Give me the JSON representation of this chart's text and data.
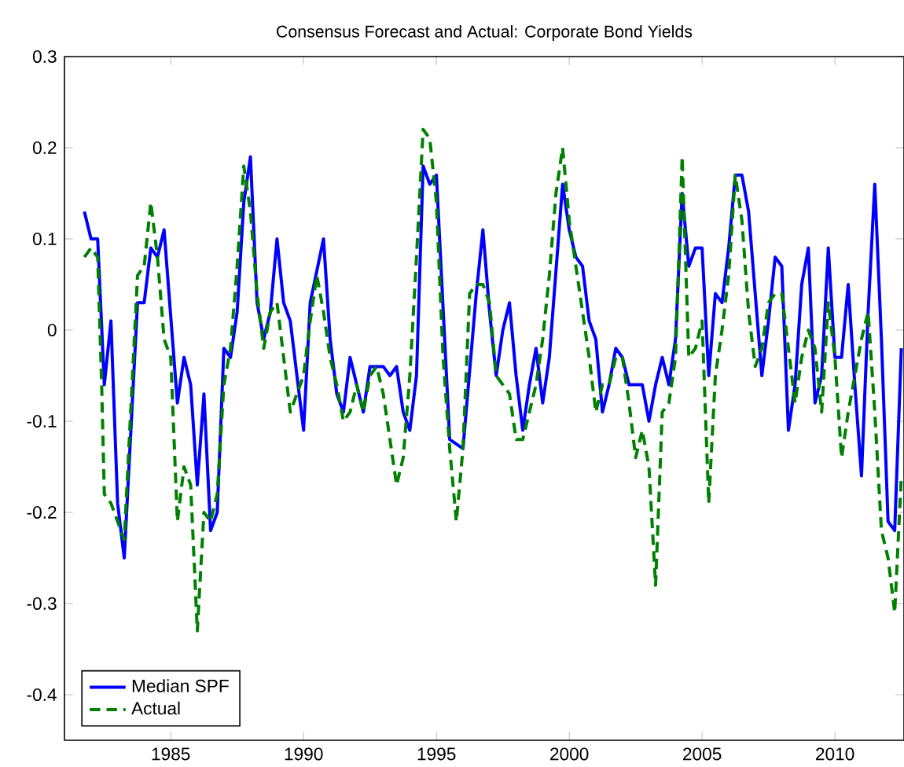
{
  "chart_data": {
    "type": "line",
    "title": "Consensus Forecast and Actual: Corporate Bond Yields",
    "xlim": [
      1981,
      2012.6
    ],
    "xticks": [
      1985,
      1990,
      1995,
      2000,
      2005,
      2010
    ],
    "ylim": [
      -0.45,
      0.3
    ],
    "yticks": [
      -0.4,
      -0.3,
      -0.2,
      -0.1,
      0,
      0.1,
      0.2,
      0.3
    ],
    "grid": false,
    "legend": "bottom left",
    "series": [
      {
        "name": "Median SPF",
        "color": "#0000ff",
        "line_style": "solid",
        "x": [
          1981.75,
          1982.0,
          1982.25,
          1982.5,
          1982.75,
          1983.0,
          1983.25,
          1983.75,
          1984.0,
          1984.25,
          1984.5,
          1984.75,
          1985.25,
          1985.5,
          1985.75,
          1986.0,
          1986.25,
          1986.5,
          1986.75,
          1987.0,
          1987.25,
          1987.5,
          1987.75,
          1988.0,
          1988.25,
          1988.5,
          1988.75,
          1989.0,
          1989.25,
          1989.5,
          1990.0,
          1990.25,
          1990.75,
          1991.0,
          1991.25,
          1991.5,
          1991.75,
          1992.0,
          1992.25,
          1992.5,
          1992.75,
          1993.0,
          1993.25,
          1993.5,
          1993.75,
          1994.0,
          1994.25,
          1994.5,
          1994.75,
          1995.0,
          1995.5,
          1996.0,
          1996.5,
          1996.75,
          1997.0,
          1997.25,
          1997.5,
          1997.75,
          1998.0,
          1998.25,
          1998.5,
          1998.75,
          1999.0,
          1999.25,
          1999.75,
          2000.0,
          2000.25,
          2000.5,
          2000.75,
          2001.0,
          2001.25,
          2001.5,
          2001.75,
          2002.0,
          2002.25,
          2002.5,
          2002.75,
          2003.0,
          2003.25,
          2003.5,
          2003.75,
          2004.0,
          2004.25,
          2004.5,
          2004.75,
          2005.0,
          2005.25,
          2005.5,
          2005.75,
          2006.0,
          2006.25,
          2006.5,
          2006.75,
          2007.0,
          2007.25,
          2007.5,
          2007.75,
          2008.0,
          2008.25,
          2008.5,
          2008.75,
          2009.0,
          2009.25,
          2009.5,
          2009.75,
          2010.0,
          2010.25,
          2010.5,
          2010.75,
          2011.0,
          2011.25,
          2011.5,
          2011.75,
          2012.0,
          2012.25,
          2012.5
        ],
        "values": [
          0.13,
          0.1,
          0.1,
          -0.06,
          0.01,
          -0.19,
          -0.25,
          0.03,
          0.03,
          0.09,
          0.08,
          0.11,
          -0.08,
          -0.03,
          -0.06,
          -0.17,
          -0.07,
          -0.22,
          -0.2,
          -0.02,
          -0.03,
          0.02,
          0.14,
          0.19,
          0.03,
          -0.01,
          0.02,
          0.1,
          0.03,
          0.01,
          -0.11,
          0.03,
          0.1,
          -0.01,
          -0.07,
          -0.09,
          -0.03,
          -0.06,
          -0.09,
          -0.04,
          -0.04,
          -0.04,
          -0.05,
          -0.04,
          -0.09,
          -0.11,
          -0.05,
          0.18,
          0.16,
          0.17,
          -0.12,
          -0.13,
          0.04,
          0.11,
          0.02,
          -0.05,
          0.0,
          0.03,
          -0.05,
          -0.11,
          -0.06,
          -0.02,
          -0.08,
          -0.03,
          0.16,
          0.11,
          0.08,
          0.07,
          0.01,
          -0.01,
          -0.09,
          -0.06,
          -0.02,
          -0.03,
          -0.06,
          -0.06,
          -0.06,
          -0.1,
          -0.06,
          -0.03,
          -0.06,
          -0.01,
          0.15,
          0.07,
          0.09,
          0.09,
          -0.05,
          0.04,
          0.03,
          0.09,
          0.17,
          0.17,
          0.13,
          0.04,
          -0.05,
          0.01,
          0.08,
          0.07,
          -0.11,
          -0.06,
          0.05,
          0.09,
          -0.08,
          -0.05,
          0.09,
          -0.03,
          -0.03,
          0.05,
          -0.06,
          -0.16,
          0.02,
          0.16,
          -0.01,
          -0.21,
          -0.22,
          -0.02
        ]
      },
      {
        "name": "Actual",
        "color": "#008000",
        "line_style": "dashed",
        "x": [
          1981.75,
          1982.0,
          1982.25,
          1982.4,
          1982.5,
          1982.75,
          1983.25,
          1983.75,
          1984.0,
          1984.25,
          1984.5,
          1984.75,
          1985.0,
          1985.25,
          1985.5,
          1985.75,
          1986.0,
          1986.25,
          1986.5,
          1986.75,
          1987.0,
          1987.25,
          1987.5,
          1987.75,
          1988.0,
          1988.25,
          1988.5,
          1988.75,
          1989.0,
          1989.25,
          1989.5,
          1990.0,
          1990.25,
          1990.5,
          1990.75,
          1991.0,
          1991.25,
          1991.5,
          1991.75,
          1992.0,
          1992.25,
          1992.5,
          1992.75,
          1993.0,
          1993.25,
          1993.5,
          1993.75,
          1994.0,
          1994.25,
          1994.5,
          1994.75,
          1995.0,
          1995.25,
          1995.5,
          1995.75,
          1996.0,
          1996.25,
          1996.5,
          1996.75,
          1997.0,
          1997.25,
          1997.5,
          1997.75,
          1998.0,
          1998.25,
          1998.5,
          1998.75,
          1999.0,
          1999.25,
          1999.5,
          1999.75,
          2000.0,
          2000.25,
          2000.5,
          2000.75,
          2001.0,
          2001.25,
          2001.5,
          2001.75,
          2002.0,
          2002.25,
          2002.5,
          2002.75,
          2003.0,
          2003.25,
          2003.5,
          2003.75,
          2004.0,
          2004.25,
          2004.5,
          2004.75,
          2005.0,
          2005.25,
          2005.5,
          2005.75,
          2006.0,
          2006.25,
          2006.5,
          2006.75,
          2007.0,
          2007.25,
          2007.5,
          2007.75,
          2008.0,
          2008.25,
          2008.5,
          2008.75,
          2009.0,
          2009.25,
          2009.5,
          2009.75,
          2010.0,
          2010.25,
          2010.5,
          2010.75,
          2011.0,
          2011.25,
          2011.5,
          2011.75,
          2012.0,
          2012.25,
          2012.5
        ],
        "values": [
          0.08,
          0.09,
          0.08,
          -0.06,
          -0.18,
          -0.19,
          -0.23,
          0.06,
          0.07,
          0.14,
          0.08,
          -0.01,
          -0.03,
          -0.21,
          -0.15,
          -0.17,
          -0.33,
          -0.2,
          -0.21,
          -0.18,
          -0.06,
          -0.02,
          0.07,
          0.18,
          0.13,
          0.04,
          -0.02,
          0.02,
          0.03,
          -0.03,
          -0.09,
          -0.05,
          0.01,
          0.06,
          0.02,
          -0.03,
          -0.06,
          -0.1,
          -0.09,
          -0.06,
          -0.09,
          -0.05,
          -0.04,
          -0.07,
          -0.12,
          -0.17,
          -0.14,
          -0.05,
          0.08,
          0.22,
          0.21,
          0.14,
          -0.03,
          -0.13,
          -0.21,
          -0.13,
          0.04,
          0.05,
          0.05,
          0.03,
          -0.05,
          -0.06,
          -0.07,
          -0.12,
          -0.12,
          -0.09,
          -0.06,
          -0.01,
          0.06,
          0.15,
          0.2,
          0.12,
          0.07,
          0.02,
          -0.03,
          -0.09,
          -0.06,
          -0.06,
          -0.03,
          -0.03,
          -0.08,
          -0.14,
          -0.11,
          -0.15,
          -0.28,
          -0.09,
          -0.08,
          -0.03,
          0.19,
          -0.03,
          -0.02,
          0.01,
          -0.19,
          -0.05,
          0.0,
          0.06,
          0.17,
          0.12,
          0.02,
          -0.04,
          -0.02,
          0.03,
          0.04,
          0.04,
          -0.02,
          -0.08,
          -0.03,
          0.0,
          -0.02,
          -0.09,
          0.03,
          -0.03,
          -0.14,
          -0.09,
          -0.05,
          -0.01,
          0.02,
          -0.09,
          -0.22,
          -0.25,
          -0.31,
          -0.16
        ]
      }
    ]
  }
}
